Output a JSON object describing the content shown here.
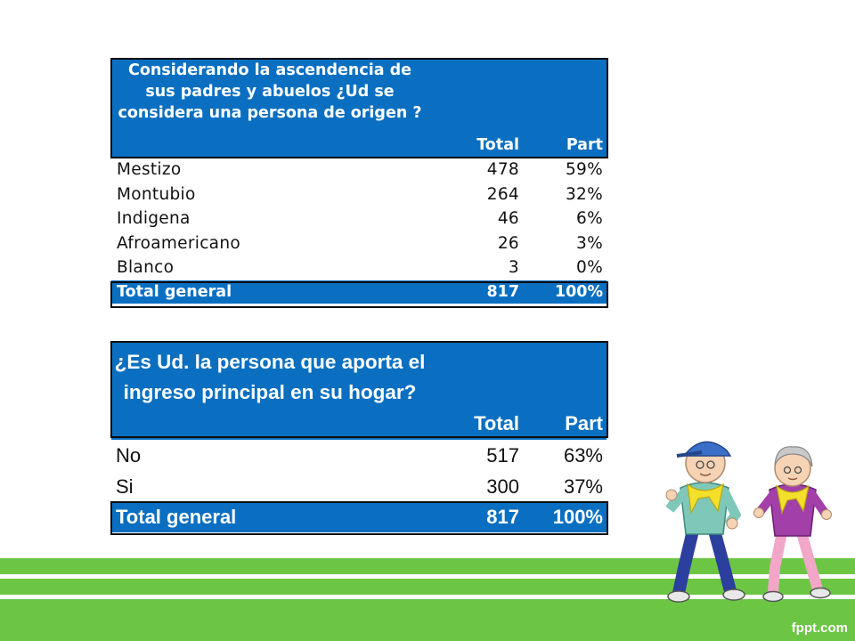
{
  "table1": {
    "question": "Considerando la ascendencia de sus padres y abuelos ¿Ud se considera una persona de origen ?",
    "col_total": "Total",
    "col_part": "Part",
    "rows": [
      {
        "label": "Mestizo",
        "total": "478",
        "part": "59%"
      },
      {
        "label": "Montubio",
        "total": "264",
        "part": "32%"
      },
      {
        "label": "Indigena",
        "total": "46",
        "part": "6%"
      },
      {
        "label": "Afroamericano",
        "total": "26",
        "part": "3%"
      },
      {
        "label": "Blanco",
        "total": "3",
        "part": "0%"
      }
    ],
    "total_label": "Total general",
    "total_value": "817",
    "total_part": "100%"
  },
  "table2": {
    "question": "¿Es Ud. la persona que aporta el ingreso principal en su hogar?",
    "col_total": "Total",
    "col_part": "Part",
    "rows": [
      {
        "label": "No",
        "total": "517",
        "part": "63%"
      },
      {
        "label": "Si",
        "total": "300",
        "part": "37%"
      }
    ],
    "total_label": "Total general",
    "total_value": "817",
    "total_part": "100%"
  },
  "footer": {
    "brand": "fppt.com"
  },
  "colors": {
    "header_blue": "#0a6fc1",
    "stripe_green": "#6cc644"
  }
}
